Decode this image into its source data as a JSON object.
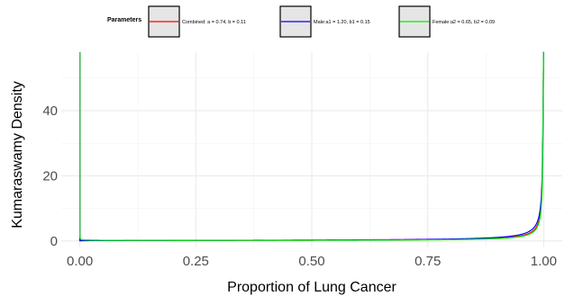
{
  "chart_data": {
    "type": "line",
    "title": "",
    "xlabel": "Proportion of Lung Cancer",
    "ylabel": "Kumaraswamy Density",
    "xlim": [
      -0.04,
      1.04
    ],
    "ylim": [
      -2,
      58
    ],
    "x_ticks": [
      0.0,
      0.25,
      0.5,
      0.75,
      1.0
    ],
    "x_tick_labels": [
      "0.00",
      "0.25",
      "0.50",
      "0.75",
      "1.00"
    ],
    "y_ticks": [
      0,
      20,
      40
    ],
    "y_tick_labels": [
      "0",
      "20",
      "40"
    ],
    "grid": true,
    "legend": {
      "title": "Parameters",
      "position": "top"
    },
    "series": [
      {
        "name": "Combined: a = 0.74, b = 0.11",
        "color": "#ff0000",
        "a": 0.74,
        "b": 0.11
      },
      {
        "name": "Male:a1 = 1.20, b1 = 0.15",
        "color": "#0000ff",
        "a": 1.2,
        "b": 0.15
      },
      {
        "name": "Female:a2 = 0.65, b2 = 0.09",
        "color": "#00ee00",
        "a": 0.65,
        "b": 0.09
      }
    ]
  }
}
